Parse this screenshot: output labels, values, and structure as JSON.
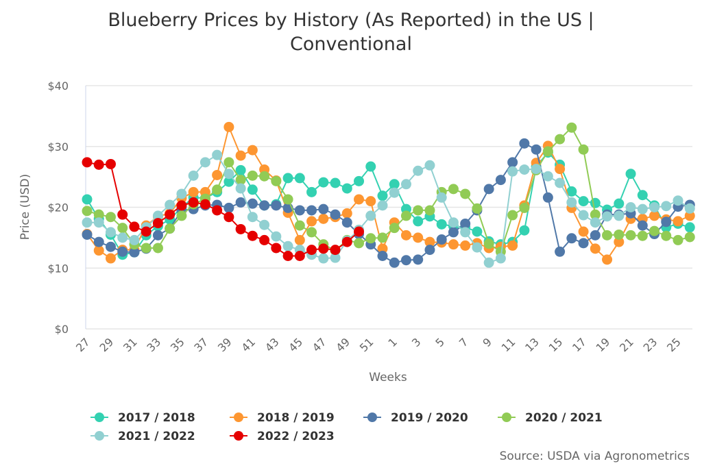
{
  "chart_data": {
    "type": "line",
    "title": "Blueberry Prices by History (As Reported) in the US | Conventional",
    "title_lines": [
      "Blueberry Prices by History (As Reported) in the US |",
      "Conventional"
    ],
    "xlabel": "Weeks",
    "ylabel": "Price (USD)",
    "ylim": [
      0,
      40
    ],
    "yticks": [
      "$0",
      "$10",
      "$20",
      "$30",
      "$40"
    ],
    "ytick_values": [
      0,
      10,
      20,
      30,
      40
    ],
    "grid": true,
    "legend_position": "bottom",
    "x": [
      27,
      28,
      29,
      30,
      31,
      32,
      33,
      34,
      35,
      36,
      37,
      38,
      39,
      40,
      41,
      42,
      43,
      44,
      45,
      46,
      47,
      48,
      49,
      50,
      51,
      52,
      1,
      2,
      3,
      4,
      5,
      6,
      7,
      8,
      9,
      10,
      11,
      12,
      13,
      14,
      15,
      16,
      17,
      18,
      19,
      20,
      21,
      22,
      23,
      24,
      25,
      26
    ],
    "xticks": [
      "27",
      "29",
      "31",
      "33",
      "35",
      "37",
      "39",
      "41",
      "43",
      "45",
      "47",
      "49",
      "51",
      "1",
      "3",
      "5",
      "7",
      "9",
      "11",
      "13",
      "15",
      "17",
      "19",
      "21",
      "23",
      "25"
    ],
    "series": [
      {
        "name": "2017 / 2018",
        "color": "#33d1b1",
        "values": [
          21.3,
          18.1,
          15.5,
          12.2,
          12.6,
          15.4,
          16.9,
          18,
          20,
          21.6,
          21.5,
          22.5,
          24.2,
          26.1,
          22.9,
          20.3,
          20.5,
          24.8,
          24.8,
          22.5,
          24.1,
          24,
          23.1,
          24.3,
          26.7,
          21.9,
          23.8,
          19.7,
          17.7,
          18.5,
          17.2,
          16.9,
          16.7,
          16,
          14.4,
          13.9,
          14.3,
          16.2,
          26.7,
          29,
          27,
          22.6,
          21,
          20.7,
          19.6,
          20.6,
          25.5,
          22,
          20.3,
          16.7,
          17.3,
          16.7
        ]
      },
      {
        "name": "2018 / 2019",
        "color": "#fd9631",
        "values": [
          15.6,
          12.9,
          11.6,
          13,
          13,
          17,
          18.5,
          19,
          21.5,
          22.5,
          22.5,
          25.3,
          33.2,
          28.5,
          29.4,
          26.2,
          24.4,
          19.1,
          14.6,
          17.7,
          18.1,
          18.4,
          19,
          21.3,
          21,
          13.2,
          17.5,
          15.4,
          15,
          14.3,
          14.2,
          13.9,
          13.7,
          14.1,
          13.3,
          13.5,
          13.7,
          20.3,
          27.3,
          30.1,
          26.3,
          19.9,
          16,
          13.2,
          11.4,
          14.3,
          18.1,
          18.1,
          18.6,
          18,
          17.7,
          18.6
        ]
      },
      {
        "name": "2019 / 2020",
        "color": "#5078a8",
        "values": [
          15.5,
          14.3,
          13.5,
          12.7,
          12.6,
          13.2,
          15.4,
          16.5,
          19.5,
          19.7,
          20.3,
          20.4,
          19.9,
          20.8,
          20.6,
          20.3,
          20.3,
          19.9,
          19.5,
          19.5,
          19.7,
          18.8,
          17.5,
          15.6,
          13.9,
          12,
          10.9,
          11.3,
          11.4,
          13,
          14.7,
          15.9,
          17.3,
          19.5,
          23,
          24.5,
          27.4,
          30.5,
          29.5,
          21.6,
          12.7,
          14.9,
          14.1,
          15.4,
          18.8,
          18.8,
          19,
          17,
          15.6,
          17.6,
          20.1,
          20.4
        ]
      },
      {
        "name": "2020 / 2021",
        "color": "#91cb55",
        "values": [
          19.4,
          18.8,
          18.4,
          16.6,
          13.9,
          13.3,
          13.3,
          16.5,
          18.6,
          20.5,
          21.4,
          22.9,
          27.4,
          24.5,
          25.2,
          25.1,
          24.3,
          21.3,
          17,
          15.9,
          13.9,
          12.9,
          14.6,
          14.1,
          14.9,
          15,
          16.6,
          18.6,
          19.5,
          19.5,
          22.5,
          23,
          22.2,
          19.8,
          14,
          12.7,
          18.7,
          19.9,
          26.1,
          29.2,
          31.2,
          33.1,
          29.5,
          18.8,
          15.4,
          15.5,
          15.4,
          15.3,
          16.1,
          15.3,
          14.6,
          15.1
        ]
      },
      {
        "name": "2021 / 2022",
        "color": "#91d0d1",
        "values": [
          17.5,
          17.5,
          15.9,
          15,
          14.6,
          16.7,
          18.6,
          20.4,
          22.2,
          25.2,
          27.4,
          28.6,
          25.5,
          23.1,
          18.4,
          17.1,
          15.2,
          13.6,
          13,
          12.2,
          11.6,
          11.7,
          14.5,
          16.3,
          18.6,
          20.3,
          22.4,
          23.8,
          26,
          26.9,
          21.6,
          17.5,
          15.9,
          13.4,
          10.9,
          11.6,
          25.9,
          26.2,
          26.3,
          25.1,
          24,
          20.8,
          18.7,
          17.5,
          18.5,
          18.6,
          20,
          19.7,
          20,
          20.2,
          21.1,
          19.8
        ]
      },
      {
        "name": "2022 / 2023",
        "color": "#e50000",
        "values": [
          27.4,
          27,
          27.1,
          18.8,
          16.8,
          16,
          17.4,
          18.8,
          20.3,
          20.8,
          20.5,
          19.5,
          18.4,
          16.4,
          15.3,
          14.6,
          13.3,
          12,
          12,
          13,
          13.2,
          13,
          14.3,
          16,
          null,
          null,
          null,
          null,
          null,
          null,
          null,
          null,
          null,
          null,
          null,
          null,
          null,
          null,
          null,
          null,
          null,
          null,
          null,
          null,
          null,
          null,
          null,
          null,
          null,
          null,
          null,
          null
        ]
      }
    ],
    "source": "Source: USDA via Agronometrics"
  }
}
